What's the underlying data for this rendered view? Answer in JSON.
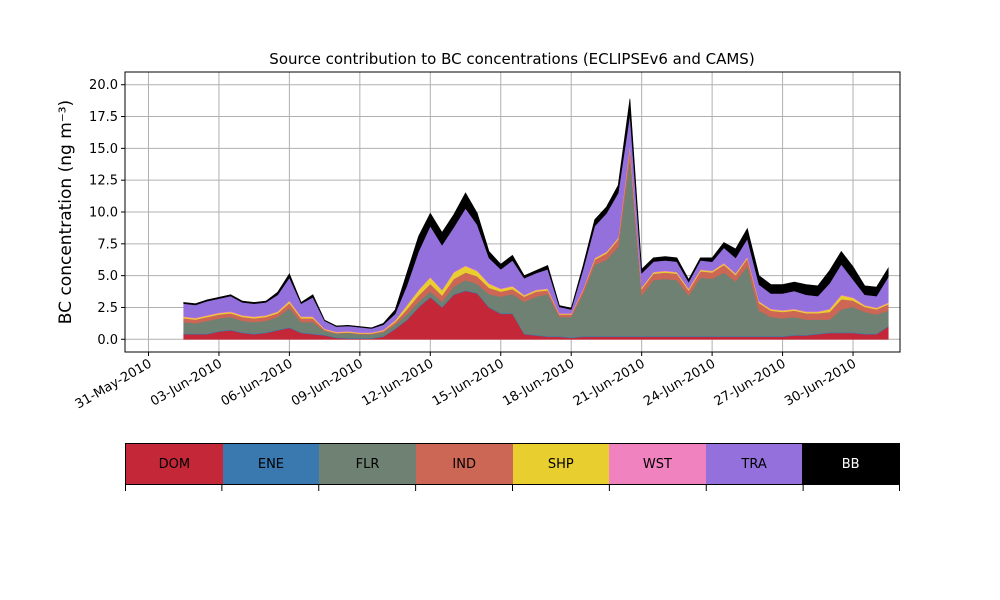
{
  "chart_data": {
    "type": "area",
    "title": "Source contribution to BC concentrations (ECLIPSEv6 and CAMS)",
    "ylabel": "BC concentration (ng m⁻³)",
    "xlabel": "",
    "x_range": [
      "2010-05-30",
      "2010-07-02"
    ],
    "ylim": [
      -1,
      21
    ],
    "grid": true,
    "yticks": [
      "0.0",
      "2.5",
      "5.0",
      "7.5",
      "10.0",
      "12.5",
      "15.0",
      "17.5",
      "20.0"
    ],
    "xticks": [
      {
        "date": "2010-05-31",
        "label": "31-May-2010"
      },
      {
        "date": "2010-06-03",
        "label": "03-Jun-2010"
      },
      {
        "date": "2010-06-06",
        "label": "06-Jun-2010"
      },
      {
        "date": "2010-06-09",
        "label": "09-Jun-2010"
      },
      {
        "date": "2010-06-12",
        "label": "12-Jun-2010"
      },
      {
        "date": "2010-06-15",
        "label": "15-Jun-2010"
      },
      {
        "date": "2010-06-18",
        "label": "18-Jun-2010"
      },
      {
        "date": "2010-06-21",
        "label": "21-Jun-2010"
      },
      {
        "date": "2010-06-24",
        "label": "24-Jun-2010"
      },
      {
        "date": "2010-06-27",
        "label": "27-Jun-2010"
      },
      {
        "date": "2010-06-30",
        "label": "30-Jun-2010"
      }
    ],
    "legend_placement": "below chart (colorbar)",
    "series": [
      {
        "name": "DOM",
        "color": "#c42737"
      },
      {
        "name": "ENE",
        "color": "#3a79b0"
      },
      {
        "name": "FLR",
        "color": "#6e8173"
      },
      {
        "name": "IND",
        "color": "#cc6655"
      },
      {
        "name": "SHP",
        "color": "#e8cf2f"
      },
      {
        "name": "WST",
        "color": "#f082c0"
      },
      {
        "name": "TRA",
        "color": "#9370db"
      },
      {
        "name": "BB",
        "color": "#000000"
      }
    ],
    "x": [
      "2010-06-01T12",
      "2010-06-02T00",
      "2010-06-02T12",
      "2010-06-03T00",
      "2010-06-03T12",
      "2010-06-04T00",
      "2010-06-04T12",
      "2010-06-05T00",
      "2010-06-05T12",
      "2010-06-06T00",
      "2010-06-06T12",
      "2010-06-07T00",
      "2010-06-07T12",
      "2010-06-08T00",
      "2010-06-08T12",
      "2010-06-09T00",
      "2010-06-09T12",
      "2010-06-10T00",
      "2010-06-10T12",
      "2010-06-11T00",
      "2010-06-11T12",
      "2010-06-12T00",
      "2010-06-12T12",
      "2010-06-13T00",
      "2010-06-13T12",
      "2010-06-14T00",
      "2010-06-14T12",
      "2010-06-15T00",
      "2010-06-15T12",
      "2010-06-16T00",
      "2010-06-16T12",
      "2010-06-17T00",
      "2010-06-17T12",
      "2010-06-18T00",
      "2010-06-18T12",
      "2010-06-19T00",
      "2010-06-19T12",
      "2010-06-20T00",
      "2010-06-20T12",
      "2010-06-21T00",
      "2010-06-21T12",
      "2010-06-22T00",
      "2010-06-22T12",
      "2010-06-23T00",
      "2010-06-23T12",
      "2010-06-24T00",
      "2010-06-24T12",
      "2010-06-25T00",
      "2010-06-25T12",
      "2010-06-26T00",
      "2010-06-26T12",
      "2010-06-27T00",
      "2010-06-27T12",
      "2010-06-28T00",
      "2010-06-28T12",
      "2010-06-29T00",
      "2010-06-29T12",
      "2010-06-30T00",
      "2010-06-30T12",
      "2010-07-01T00",
      "2010-07-01T12"
    ],
    "stacks": {
      "DOM": [
        0.4,
        0.4,
        0.4,
        0.6,
        0.7,
        0.5,
        0.4,
        0.5,
        0.7,
        0.9,
        0.5,
        0.4,
        0.3,
        0.1,
        0.05,
        0.05,
        0.05,
        0.2,
        0.8,
        1.5,
        2.5,
        3.3,
        2.5,
        3.5,
        3.8,
        3.6,
        2.5,
        2.0,
        2.0,
        0.4,
        0.3,
        0.2,
        0.2,
        0.1,
        0.2,
        0.2,
        0.2,
        0.2,
        0.2,
        0.2,
        0.2,
        0.2,
        0.2,
        0.2,
        0.2,
        0.2,
        0.2,
        0.2,
        0.2,
        0.2,
        0.2,
        0.2,
        0.3,
        0.3,
        0.4,
        0.5,
        0.5,
        0.5,
        0.4,
        0.4,
        1.0
      ],
      "ENE": [
        0.05,
        0.05,
        0.05,
        0.05,
        0.05,
        0.05,
        0.05,
        0.05,
        0.05,
        0.05,
        0.05,
        0.05,
        0.05,
        0.05,
        0.05,
        0.05,
        0.05,
        0.05,
        0.05,
        0.05,
        0.05,
        0.05,
        0.05,
        0.05,
        0.05,
        0.05,
        0.05,
        0.05,
        0.05,
        0.05,
        0.05,
        0.05,
        0.05,
        0.05,
        0.05,
        0.05,
        0.05,
        0.05,
        0.05,
        0.05,
        0.05,
        0.05,
        0.05,
        0.05,
        0.05,
        0.05,
        0.05,
        0.05,
        0.05,
        0.05,
        0.05,
        0.05,
        0.05,
        0.05,
        0.05,
        0.05,
        0.05,
        0.05,
        0.05,
        0.05,
        0.05
      ],
      "FLR": [
        0.9,
        0.8,
        1.0,
        1.0,
        1.0,
        0.9,
        0.9,
        0.9,
        1.0,
        1.5,
        0.8,
        0.9,
        0.3,
        0.3,
        0.4,
        0.3,
        0.3,
        0.3,
        0.3,
        0.4,
        0.4,
        0.4,
        0.4,
        0.6,
        0.8,
        0.7,
        1.0,
        1.3,
        1.5,
        2.5,
        3.0,
        3.3,
        1.5,
        1.6,
        3.3,
        5.6,
        6.0,
        7.0,
        14.0,
        3.2,
        4.4,
        4.5,
        4.4,
        3.2,
        4.6,
        4.5,
        5.0,
        4.3,
        5.5,
        2.0,
        1.5,
        1.4,
        1.4,
        1.2,
        1.1,
        1.0,
        1.8,
        2.0,
        1.7,
        1.5,
        1.2
      ],
      "IND": [
        0.3,
        0.3,
        0.3,
        0.3,
        0.3,
        0.3,
        0.3,
        0.3,
        0.3,
        0.4,
        0.3,
        0.3,
        0.1,
        0.05,
        0.05,
        0.05,
        0.05,
        0.1,
        0.2,
        0.4,
        0.5,
        0.6,
        0.5,
        0.6,
        0.6,
        0.6,
        0.5,
        0.4,
        0.4,
        0.4,
        0.4,
        0.3,
        0.2,
        0.2,
        0.3,
        0.4,
        0.5,
        0.6,
        0.8,
        0.5,
        0.5,
        0.5,
        0.5,
        0.4,
        0.5,
        0.5,
        0.6,
        0.5,
        0.6,
        0.6,
        0.5,
        0.5,
        0.5,
        0.5,
        0.5,
        0.6,
        0.8,
        0.5,
        0.4,
        0.4,
        0.5
      ],
      "SHP": [
        0.1,
        0.1,
        0.1,
        0.1,
        0.1,
        0.1,
        0.1,
        0.1,
        0.1,
        0.15,
        0.1,
        0.1,
        0.05,
        0.05,
        0.05,
        0.05,
        0.05,
        0.05,
        0.1,
        0.3,
        0.4,
        0.5,
        0.4,
        0.5,
        0.5,
        0.4,
        0.3,
        0.2,
        0.2,
        0.1,
        0.1,
        0.1,
        0.05,
        0.05,
        0.05,
        0.1,
        0.1,
        0.1,
        0.2,
        0.1,
        0.1,
        0.1,
        0.1,
        0.1,
        0.1,
        0.1,
        0.1,
        0.1,
        0.1,
        0.1,
        0.1,
        0.1,
        0.1,
        0.1,
        0.1,
        0.2,
        0.3,
        0.2,
        0.1,
        0.1,
        0.1
      ],
      "WST": [
        0.05,
        0.05,
        0.05,
        0.05,
        0.05,
        0.05,
        0.05,
        0.05,
        0.05,
        0.05,
        0.05,
        0.05,
        0.05,
        0.05,
        0.05,
        0.05,
        0.05,
        0.05,
        0.05,
        0.05,
        0.05,
        0.05,
        0.05,
        0.05,
        0.05,
        0.05,
        0.05,
        0.05,
        0.05,
        0.05,
        0.05,
        0.05,
        0.05,
        0.05,
        0.05,
        0.05,
        0.05,
        0.05,
        0.05,
        0.05,
        0.05,
        0.05,
        0.05,
        0.05,
        0.05,
        0.05,
        0.05,
        0.05,
        0.05,
        0.05,
        0.05,
        0.05,
        0.05,
        0.05,
        0.05,
        0.05,
        0.05,
        0.05,
        0.05,
        0.05,
        0.05
      ],
      "TRA": [
        1.0,
        1.0,
        1.1,
        1.1,
        1.2,
        1.0,
        1.0,
        1.0,
        1.3,
        1.8,
        1.0,
        1.5,
        0.6,
        0.4,
        0.4,
        0.4,
        0.3,
        0.4,
        0.5,
        1.5,
        3.0,
        4.0,
        3.5,
        3.5,
        4.5,
        3.6,
        2.0,
        1.5,
        2.0,
        1.3,
        1.3,
        1.5,
        0.5,
        0.3,
        1.5,
        2.5,
        3.0,
        3.5,
        2.4,
        1.1,
        0.8,
        0.8,
        0.8,
        0.5,
        0.7,
        0.7,
        1.2,
        1.2,
        1.4,
        1.3,
        1.2,
        1.3,
        1.4,
        1.3,
        1.2,
        2.0,
        2.4,
        1.4,
        0.8,
        0.9,
        2.0
      ],
      "BB": [
        0.1,
        0.1,
        0.1,
        0.1,
        0.1,
        0.1,
        0.1,
        0.1,
        0.2,
        0.3,
        0.1,
        0.2,
        0.05,
        0.05,
        0.05,
        0.05,
        0.05,
        0.1,
        0.3,
        1.0,
        1.2,
        1.0,
        1.0,
        1.0,
        1.2,
        0.9,
        0.5,
        0.4,
        0.4,
        0.2,
        0.2,
        0.3,
        0.1,
        0.1,
        0.3,
        0.5,
        0.5,
        0.6,
        1.2,
        0.3,
        0.3,
        0.3,
        0.3,
        0.2,
        0.2,
        0.3,
        0.4,
        0.7,
        0.8,
        0.7,
        0.7,
        0.7,
        0.7,
        0.8,
        0.8,
        1.0,
        1.0,
        1.0,
        0.7,
        0.7,
        0.7
      ]
    }
  }
}
